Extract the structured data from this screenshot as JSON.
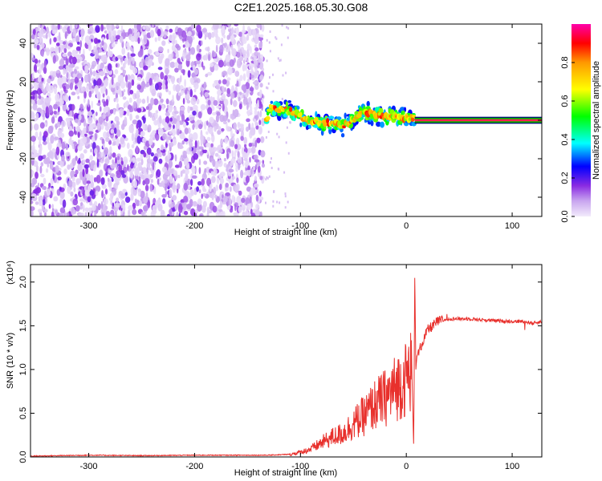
{
  "title": "C2E1.2025.168.05.30.G08",
  "chart_data": [
    {
      "type": "heatmap",
      "xlabel": "Height of straight line (km)",
      "ylabel": "Frequency (Hz)",
      "xlim": [
        -355,
        128
      ],
      "ylim": [
        -50,
        50
      ],
      "xticks": [
        -300,
        -200,
        -100,
        0,
        100
      ],
      "yticks": [
        -40,
        -20,
        0,
        20,
        40
      ],
      "colorbar": {
        "label": "Normalized spectral amplitude",
        "range": [
          0,
          1
        ],
        "ticks": [
          "0.0",
          "0.2",
          "0.4",
          "0.6",
          "0.8"
        ],
        "colors": [
          "#f2ebfb",
          "#c9a6ef",
          "#8a2be2",
          "#0000ff",
          "#00ffff",
          "#00ff00",
          "#ffff00",
          "#ff9900",
          "#ff0000",
          "#ff00aa"
        ]
      },
      "regions": [
        {
          "x_range": [
            -355,
            -135
          ],
          "y_range": [
            -50,
            50
          ],
          "amplitude": [
            0.02,
            0.15
          ]
        },
        {
          "x_range": [
            -135,
            8
          ],
          "y_range": [
            -12,
            9
          ],
          "amplitude": [
            0.2,
            0.9
          ]
        },
        {
          "x_range": [
            8,
            128
          ],
          "y_range": [
            -1,
            1
          ],
          "amplitude": [
            0.8,
            0.9
          ]
        }
      ],
      "ridge": {
        "x": [
          -130,
          -120,
          -110,
          -100,
          -90,
          -80,
          -70,
          -60,
          -50,
          -40,
          -30,
          -20,
          -10,
          0,
          8
        ],
        "y": [
          6,
          6,
          5,
          2,
          0,
          -2,
          -1,
          -3,
          1,
          4,
          3,
          2,
          2,
          1,
          1
        ]
      }
    },
    {
      "type": "line",
      "xlabel": "Height of straight line (km)",
      "ylabel": "SNR (10 * v/v)",
      "y_multiplier": "(x10⁴)",
      "xlim": [
        -355,
        128
      ],
      "ylim": [
        0,
        2.2
      ],
      "xticks": [
        -300,
        -200,
        -100,
        0,
        100
      ],
      "yticks": [
        "0.0",
        "0.5",
        "1.0",
        "1.5",
        "2.0"
      ],
      "color": "#e8302c",
      "series": [
        {
          "x": [
            -355,
            -300,
            -250,
            -200,
            -160,
            -130,
            -110,
            -100,
            -90,
            -80,
            -70,
            -60,
            -50,
            -40,
            -30,
            -20,
            -10,
            0,
            5,
            7,
            8,
            9,
            10,
            15,
            20,
            30,
            40,
            60,
            80,
            100,
            110,
            120,
            128
          ],
          "y": [
            0.01,
            0.02,
            0.015,
            0.02,
            0.02,
            0.02,
            0.03,
            0.06,
            0.1,
            0.18,
            0.25,
            0.3,
            0.42,
            0.52,
            0.66,
            0.75,
            0.88,
            1.0,
            1.12,
            0.1,
            2.15,
            1.0,
            1.15,
            1.3,
            1.45,
            1.55,
            1.58,
            1.58,
            1.56,
            1.55,
            1.55,
            1.53,
            1.55
          ]
        }
      ]
    }
  ]
}
